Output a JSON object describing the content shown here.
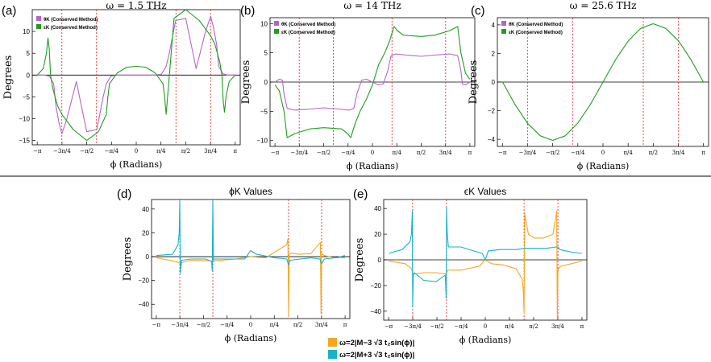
{
  "figure": {
    "separator_color": "#000000",
    "colors": {
      "purple": "#b565c8",
      "green": "#1f9e1f",
      "orange": "#f5a623",
      "cyan": "#17b3c9",
      "red_dashed": "#e02020"
    },
    "y_axis_title": "Degrees",
    "x_axis_title": "ϕ (Radians)",
    "x_ticks": [
      "−π",
      "−3π/4",
      "−π/2",
      "−π/4",
      "0",
      "π/4",
      "π/2",
      "3π/4",
      "π"
    ]
  },
  "chart_data": [
    {
      "id": "a",
      "panel_label": "(a)",
      "title": "ω = 1.5 THz",
      "type": "line",
      "ylim": [
        -16,
        15
      ],
      "yticks": [
        -15,
        -10,
        -5,
        0,
        5,
        10
      ],
      "legend": [
        "θK (Conserved Method)",
        "εK (Conserved Method)"
      ],
      "vlines": [
        -2.36,
        -1.26,
        1.26,
        2.36
      ],
      "series": [
        {
          "name": "θK (Conserved Method)",
          "color": "purple",
          "x": [
            -3.14,
            -2.9,
            -2.75,
            -2.62,
            -2.55,
            -2.45,
            -2.36,
            -2.2,
            -1.9,
            -1.57,
            -1.25,
            -1.05,
            -0.95,
            -0.8,
            -0.6,
            0,
            0.6,
            0.8,
            0.95,
            1.05,
            1.25,
            1.57,
            1.9,
            2.2,
            2.36,
            2.45,
            2.55,
            2.62,
            2.75,
            2.9,
            3.14
          ],
          "y": [
            0,
            0,
            -0.3,
            -2,
            -7,
            -11,
            -13.5,
            -10,
            -1.5,
            -13,
            -12.5,
            -5,
            -2,
            -0.2,
            0,
            0,
            0,
            0.2,
            2,
            5,
            12.5,
            13,
            1.5,
            10,
            13.5,
            11,
            7,
            2,
            0.3,
            0,
            0
          ]
        },
        {
          "name": "εK (Conserved Method)",
          "color": "green",
          "x": [
            -3.14,
            -2.95,
            -2.85,
            -2.8,
            -2.76,
            -2.72,
            -2.65,
            -2.5,
            -2.36,
            -2.0,
            -1.57,
            -1.2,
            -0.95,
            -0.9,
            -0.85,
            -0.6,
            -0.3,
            0,
            0.3,
            0.6,
            0.85,
            0.9,
            0.95,
            1.2,
            1.57,
            2.0,
            2.36,
            2.5,
            2.65,
            2.72,
            2.76,
            2.8,
            2.85,
            2.95,
            3.14
          ],
          "y": [
            0,
            1.5,
            5,
            8.5,
            6,
            0,
            -3,
            -7,
            -9,
            -12.5,
            -15,
            -13,
            -9,
            -5,
            -2,
            0.5,
            1.8,
            2,
            1.8,
            0.5,
            -2,
            -5,
            -9,
            13,
            15,
            12.5,
            9,
            7,
            3,
            0,
            -6,
            -8.5,
            -5,
            -1.5,
            0
          ]
        }
      ]
    },
    {
      "id": "b",
      "panel_label": "(b)",
      "title": "ω = 14 THz",
      "type": "line",
      "ylim": [
        -11,
        11
      ],
      "yticks": [
        -10,
        -5,
        0,
        5,
        10
      ],
      "legend": [
        "θK (Conserved Method)",
        "εK (Conserved Method)"
      ],
      "vlines": [
        -2.36,
        -1.26,
        0.63,
        2.36
      ],
      "series": [
        {
          "name": "θK (Conserved Method)",
          "color": "purple",
          "x": [
            -3.14,
            -3.0,
            -2.9,
            -2.85,
            -2.75,
            -2.5,
            -2.0,
            -1.57,
            -1.1,
            -0.75,
            -0.6,
            -0.5,
            -0.35,
            -0.2,
            0,
            0.2,
            0.35,
            0.5,
            0.6,
            0.75,
            1.1,
            1.57,
            2.0,
            2.5,
            2.75,
            2.85,
            2.9,
            3.0,
            3.14
          ],
          "y": [
            0,
            0.5,
            0.3,
            -2,
            -4.5,
            -4.8,
            -4.6,
            -4.4,
            -4.6,
            -4.8,
            -4.5,
            -2,
            0.3,
            0.5,
            0,
            -0.5,
            -0.3,
            2,
            4.5,
            4.8,
            4.6,
            4.4,
            4.6,
            4.8,
            4.5,
            2,
            -0.3,
            -0.5,
            0
          ]
        },
        {
          "name": "εK (Conserved Method)",
          "color": "green",
          "x": [
            -3.14,
            -3.0,
            -2.85,
            -2.75,
            -2.5,
            -2.0,
            -1.57,
            -1.0,
            -0.8,
            -0.7,
            -0.55,
            -0.4,
            -0.2,
            0,
            0.2,
            0.4,
            0.55,
            0.7,
            0.8,
            1.0,
            1.57,
            2.0,
            2.5,
            2.75,
            2.85,
            3.0,
            3.14
          ],
          "y": [
            -0.5,
            -1.5,
            -5,
            -9.5,
            -8.8,
            -8,
            -7.8,
            -8,
            -8.8,
            -9.5,
            -7,
            -5,
            -3,
            -0.5,
            3,
            5,
            7,
            9.5,
            8.8,
            8,
            7.8,
            8,
            8.8,
            9.5,
            5,
            1.5,
            0.5
          ]
        }
      ]
    },
    {
      "id": "c",
      "panel_label": "(c)",
      "title": "ω = 25.6 THz",
      "type": "line",
      "ylim": [
        -4.5,
        4.5
      ],
      "yticks": [
        -4,
        -2,
        0,
        2,
        4
      ],
      "legend": [
        "θK (Conserved Method)",
        "εK (Conserved Method)"
      ],
      "vlines": [
        -2.36,
        -0.95,
        1.26,
        2.36
      ],
      "series": [
        {
          "name": "εK (Conserved Method)",
          "color": "green",
          "x": [
            -3.14,
            -2.75,
            -2.36,
            -1.96,
            -1.57,
            -1.18,
            -0.79,
            -0.39,
            0,
            0.39,
            0.79,
            1.18,
            1.57,
            1.96,
            2.36,
            2.75,
            3.14
          ],
          "y": [
            0,
            -1.56,
            -2.88,
            -3.76,
            -4.08,
            -3.76,
            -2.88,
            -1.56,
            0,
            1.56,
            2.88,
            3.76,
            4.08,
            3.76,
            2.88,
            1.56,
            0
          ]
        }
      ]
    },
    {
      "id": "d",
      "panel_label": "(d)",
      "title": "ϕK Values",
      "type": "line",
      "ylim": [
        -52,
        48
      ],
      "yticks": [
        -40,
        -20,
        0,
        20,
        40
      ],
      "vlines": [
        -2.36,
        -1.26,
        1.26,
        2.36
      ],
      "series": [
        {
          "name": "ω=2|M−3√3 t2 sin(ϕ)|",
          "color": "orange",
          "x": [
            -3.14,
            -2.6,
            -2.4,
            -2.36,
            -2.3,
            -2.0,
            -1.35,
            -1.26,
            -1.2,
            -0.5,
            0,
            0.5,
            1.2,
            1.24,
            1.26,
            1.28,
            1.35,
            1.6,
            2.0,
            2.32,
            2.34,
            2.36,
            2.38,
            2.45,
            2.8,
            3.14
          ],
          "y": [
            -1,
            -3.5,
            -5,
            -5.5,
            -5,
            -3,
            -3.5,
            -4,
            -3.5,
            -2,
            0,
            -1,
            10,
            15,
            -50,
            2,
            3,
            2,
            2.5,
            12,
            -48,
            3,
            2,
            1,
            -1,
            -1
          ]
        },
        {
          "name": "ω=2|M+3√3 t2 sin(ϕ)|",
          "color": "cyan",
          "x": [
            -3.14,
            -2.6,
            -2.42,
            -2.38,
            -2.36,
            -2.34,
            -2.3,
            -2.0,
            -1.5,
            -1.3,
            -1.28,
            -1.26,
            -1.24,
            -1.2,
            -0.8,
            -0.2,
            0,
            0.2,
            0.8,
            1.2,
            1.26,
            1.3,
            2.0,
            2.3,
            2.36,
            2.45,
            2.8,
            3.14
          ],
          "y": [
            1,
            2,
            10,
            20,
            47,
            -14,
            -3,
            -2,
            -2,
            -4,
            -12,
            47,
            -3,
            -2,
            -2,
            -2,
            5,
            2,
            -1,
            -2,
            -7,
            -3,
            -1,
            -2,
            -6,
            -2,
            -1,
            1
          ]
        }
      ]
    },
    {
      "id": "e",
      "panel_label": "(e)",
      "title": "ϵK Values",
      "type": "line",
      "ylim": [
        -47,
        47
      ],
      "yticks": [
        -40,
        -20,
        0,
        20,
        40
      ],
      "vlines": [
        -2.36,
        -1.26,
        1.26,
        2.36
      ],
      "series": [
        {
          "name": "ω=2|M−3√3 t2 sin(ϕ)|",
          "color": "orange",
          "x": [
            -3.14,
            -2.6,
            -2.4,
            -2.36,
            -2.32,
            -2.0,
            -1.57,
            -1.3,
            -1.26,
            -1.22,
            -0.8,
            -0.2,
            0,
            0.2,
            0.6,
            1.0,
            1.2,
            1.24,
            1.26,
            1.28,
            1.4,
            1.6,
            1.9,
            2.2,
            2.32,
            2.34,
            2.36,
            2.38,
            2.45,
            2.8,
            3.14
          ],
          "y": [
            -1,
            -3,
            -7,
            -10,
            -11,
            -10,
            -10,
            -11,
            -10,
            -8,
            -8,
            -5,
            0,
            -3,
            -4,
            -7,
            -15,
            -25,
            -42,
            36,
            20,
            17,
            17,
            20,
            38,
            -45,
            -10,
            -7,
            -5,
            -3,
            -1
          ]
        },
        {
          "name": "ω=2|M+3√3 t2 sin(ϕ)|",
          "color": "cyan",
          "x": [
            -3.14,
            -2.7,
            -2.45,
            -2.4,
            -2.37,
            -2.36,
            -2.34,
            -2.3,
            -2.0,
            -1.6,
            -1.3,
            -1.27,
            -1.26,
            -1.24,
            -1.2,
            -0.8,
            -0.1,
            0,
            0.1,
            0.5,
            1.0,
            1.3,
            2.0,
            2.3,
            2.36,
            2.42,
            2.8,
            3.14
          ],
          "y": [
            5,
            8,
            14,
            20,
            38,
            -37,
            -12,
            -10,
            -16,
            -17,
            -12,
            -30,
            41,
            22,
            10,
            10,
            5,
            0,
            7,
            8,
            8,
            9,
            9,
            10,
            10,
            8,
            6,
            5
          ]
        }
      ]
    }
  ],
  "legend_bottom": {
    "items": [
      {
        "label": "ω=2|M−3 √3 t₂sin(ϕ)|",
        "color": "orange"
      },
      {
        "label": "ω=2|M+3 √3 t₂sin(ϕ)|",
        "color": "cyan"
      }
    ]
  }
}
